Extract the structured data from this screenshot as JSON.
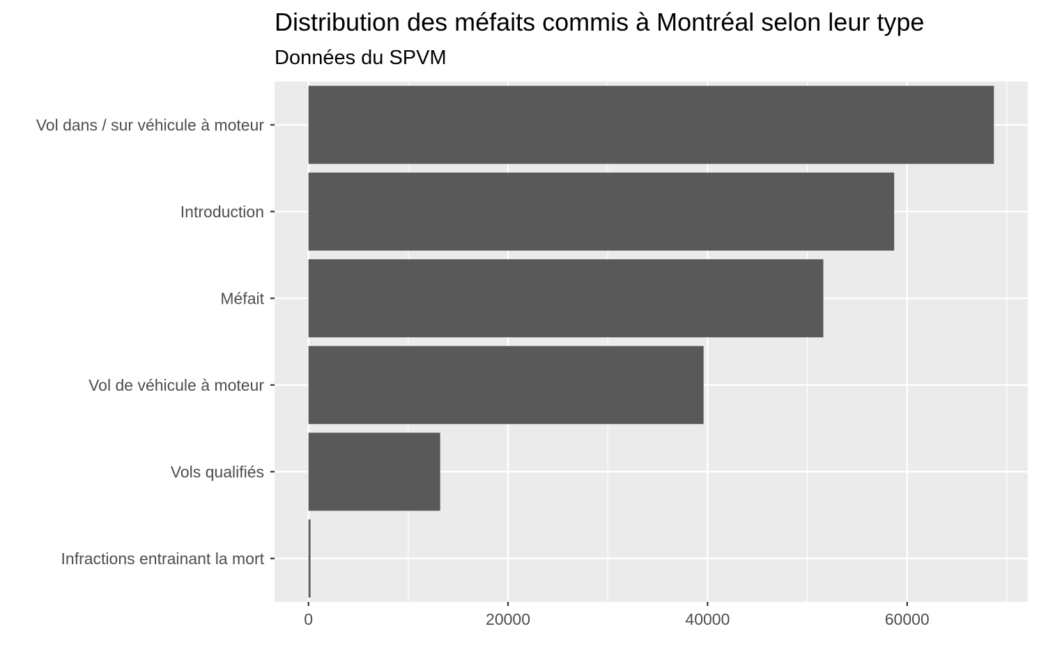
{
  "chart_data": {
    "type": "bar",
    "orientation": "horizontal",
    "title": "Distribution des méfaits commis à Montréal selon leur type",
    "subtitle": "Données du SPVM",
    "xlabel": "",
    "ylabel": "",
    "categories": [
      "Vol dans / sur véhicule à moteur",
      "Introduction",
      "Méfait",
      "Vol de véhicule à moteur",
      "Vols qualifiés",
      "Infractions entrainant la mort"
    ],
    "values": [
      68700,
      58700,
      51600,
      39600,
      13200,
      200
    ],
    "xlim": [
      -3400,
      72100
    ],
    "x_ticks": [
      0,
      20000,
      40000,
      60000
    ],
    "x_tick_labels": [
      "0",
      "20000",
      "40000",
      "60000"
    ],
    "grid": true,
    "legend": "none",
    "colors": {
      "bar": "#595959",
      "panel_background": "#ebebeb",
      "grid_line": "#ffffff",
      "tick_mark": "#333333",
      "tick_text": "#4d4d4d",
      "title_text": "#000000"
    }
  }
}
